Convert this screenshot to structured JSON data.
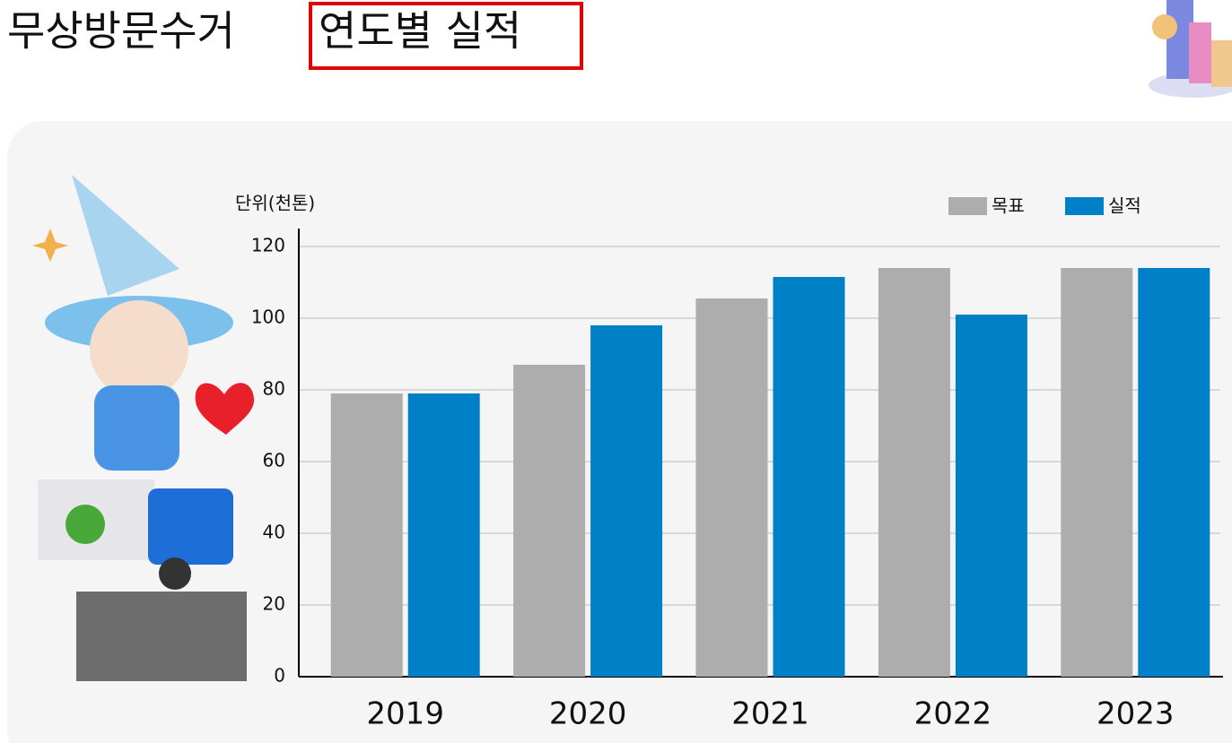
{
  "chart_data": {
    "type": "bar",
    "title": "무상방문수거",
    "title_highlight": "연도별 실적",
    "y_unit": "단위(천톤)",
    "categories": [
      "2019",
      "2020",
      "2021",
      "2022",
      "2023"
    ],
    "series": [
      {
        "name": "목표",
        "color": "#adadad",
        "values": [
          79,
          87,
          105.5,
          114,
          114
        ]
      },
      {
        "name": "실적",
        "color": "#0080c6",
        "values": [
          79,
          98,
          111.5,
          101,
          114
        ]
      }
    ],
    "ylim": [
      0,
      120
    ],
    "yticks": [
      0,
      20,
      40,
      60,
      80,
      100,
      120
    ],
    "grid": true
  }
}
